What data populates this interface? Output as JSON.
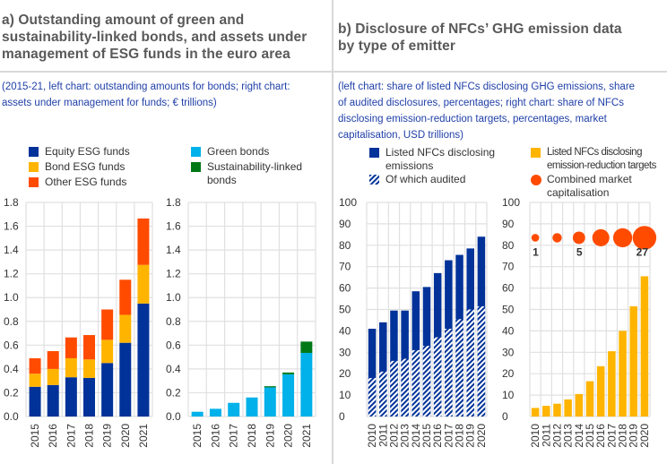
{
  "panel_a": {
    "title": "a) Outstanding amount of green and sustainability-linked bonds, and assets under management of ESG funds in the euro area",
    "title_lines": [
      "a) Outstanding amount of green and",
      "sustainability-linked bonds, and assets under",
      "management of ESG funds in the euro area"
    ],
    "subtitle_lines": [
      "(2015-21, left chart: outstanding amounts for bonds; right chart:",
      "assets under management for funds; € trillions)"
    ],
    "legend": [
      {
        "label": "Equity ESG funds",
        "color": "#003299"
      },
      {
        "label": "Bond ESG funds",
        "color": "#ffb400"
      },
      {
        "label": "Other ESG funds",
        "color": "#ff4b00"
      },
      {
        "label": "Green bonds",
        "color": "#00b1ea"
      },
      {
        "label": "Sustainability-linked bonds",
        "label_lines": [
          "Sustainability-linked",
          "bonds"
        ],
        "color": "#007816"
      }
    ]
  },
  "panel_b": {
    "title": "b) Disclosure of NFCs’ GHG emission data by type of emitter",
    "title_lines": [
      "b) Disclosure of NFCs’ GHG emission data",
      "by type of emitter"
    ],
    "subtitle_lines": [
      "(left chart: share of listed NFCs disclosing GHG emissions, share",
      "of audited disclosures, percentages; right chart: share of NFCs",
      "disclosing emission-reduction targets, percentages, market",
      "capitalisation, USD trillions)"
    ],
    "legend": [
      {
        "label": "Listed NFCs disclosing emissions",
        "label_lines": [
          "Listed NFCs disclosing",
          "emissions"
        ],
        "color": "#003299",
        "type": "square"
      },
      {
        "label": "Of which audited",
        "color": "#003299",
        "type": "hatch"
      },
      {
        "label": "Listed NFCs disclosing emission-reduction targets",
        "label_lines": [
          "Listed NFCs disclosing",
          "emission-reduction targets"
        ],
        "color": "#ffb400",
        "type": "square"
      },
      {
        "label": "Combined market capitalisation",
        "label_lines": [
          "Combined market",
          "capitalisation"
        ],
        "color": "#ff4b00",
        "type": "circle"
      }
    ]
  },
  "chart_data": [
    {
      "id": "esg_funds",
      "type": "bar",
      "stacked": true,
      "title": "",
      "xlabel": "",
      "ylabel": "€ trillions",
      "categories": [
        "2015",
        "2016",
        "2017",
        "2018",
        "2019",
        "2020",
        "2021"
      ],
      "ylim": [
        0,
        1.8
      ],
      "yticks": [
        "0.0",
        "0.2",
        "0.4",
        "0.6",
        "0.8",
        "1.0",
        "1.2",
        "1.4",
        "1.6",
        "1.8"
      ],
      "grid": true,
      "series": [
        {
          "name": "Equity ESG funds",
          "color": "#003299",
          "values": [
            0.25,
            0.265,
            0.33,
            0.325,
            0.45,
            0.62,
            0.95
          ]
        },
        {
          "name": "Bond ESG funds",
          "color": "#ffb400",
          "values": [
            0.11,
            0.135,
            0.16,
            0.155,
            0.195,
            0.235,
            0.325
          ]
        },
        {
          "name": "Other ESG funds",
          "color": "#ff4b00",
          "values": [
            0.13,
            0.15,
            0.175,
            0.205,
            0.255,
            0.295,
            0.39
          ]
        }
      ]
    },
    {
      "id": "bonds",
      "type": "bar",
      "stacked": true,
      "title": "",
      "xlabel": "",
      "ylabel": "€ trillions",
      "categories": [
        "2015",
        "2016",
        "2017",
        "2018",
        "2019",
        "2020",
        "2021"
      ],
      "ylim": [
        0,
        1.8
      ],
      "yticks": [
        "0.0",
        "0.2",
        "0.4",
        "0.6",
        "0.8",
        "1.0",
        "1.2",
        "1.4",
        "1.6",
        "1.8"
      ],
      "grid": true,
      "series": [
        {
          "name": "Green bonds",
          "color": "#00b1ea",
          "values": [
            0.04,
            0.065,
            0.115,
            0.16,
            0.245,
            0.355,
            0.535
          ]
        },
        {
          "name": "Sustainability-linked bonds",
          "color": "#007816",
          "values": [
            0,
            0,
            0,
            0,
            0.01,
            0.015,
            0.095
          ]
        }
      ]
    },
    {
      "id": "ghg_disclosure",
      "type": "bar",
      "overlay": true,
      "title": "",
      "xlabel": "",
      "ylabel": "percentages",
      "categories": [
        "2010",
        "2011",
        "2012",
        "2013",
        "2014",
        "2015",
        "2016",
        "2017",
        "2018",
        "2019",
        "2020"
      ],
      "ylim": [
        0,
        100
      ],
      "yticks": [
        "0",
        "10",
        "20",
        "30",
        "40",
        "50",
        "60",
        "70",
        "80",
        "90",
        "100"
      ],
      "grid": true,
      "series": [
        {
          "name": "Listed NFCs disclosing emissions",
          "color": "#003299",
          "values": [
            41,
            44,
            49.5,
            49.5,
            58.5,
            60.5,
            67,
            73,
            75.5,
            78.5,
            84
          ]
        },
        {
          "name": "Of which audited",
          "color": "#003299",
          "pattern": "hatch",
          "values": [
            18,
            21,
            26,
            27,
            31,
            33,
            37,
            41,
            45.5,
            50,
            51.5
          ]
        }
      ]
    },
    {
      "id": "targets",
      "type": "bar",
      "title": "",
      "xlabel": "",
      "ylabel": "percentages",
      "categories": [
        "2010",
        "2011",
        "2012",
        "2013",
        "2014",
        "2015",
        "2016",
        "2017",
        "2018",
        "2019",
        "2020"
      ],
      "ylim": [
        0,
        100
      ],
      "yticks": [
        "0",
        "10",
        "20",
        "30",
        "40",
        "50",
        "60",
        "70",
        "80",
        "90",
        "100"
      ],
      "grid": true,
      "series": [
        {
          "name": "Listed NFCs disclosing emission-reduction targets",
          "color": "#ffb400",
          "values": [
            4,
            5,
            6,
            8,
            10.5,
            16.5,
            23.5,
            30.5,
            40,
            51.5,
            65.5
          ]
        }
      ],
      "bubbles": {
        "name": "Combined market capitalisation",
        "unit": "USD trillions",
        "color": "#ff4b00",
        "y_position": 83.5,
        "points": [
          {
            "x": "2010",
            "value": 1,
            "label": "1"
          },
          {
            "x": "2012",
            "value": 2,
            "label": ""
          },
          {
            "x": "2014",
            "value": 5,
            "label": "5"
          },
          {
            "x": "2016",
            "value": 12,
            "label": ""
          },
          {
            "x": "2018",
            "value": 16,
            "label": ""
          },
          {
            "x": "2020",
            "value": 27,
            "label": "27"
          }
        ]
      }
    }
  ]
}
